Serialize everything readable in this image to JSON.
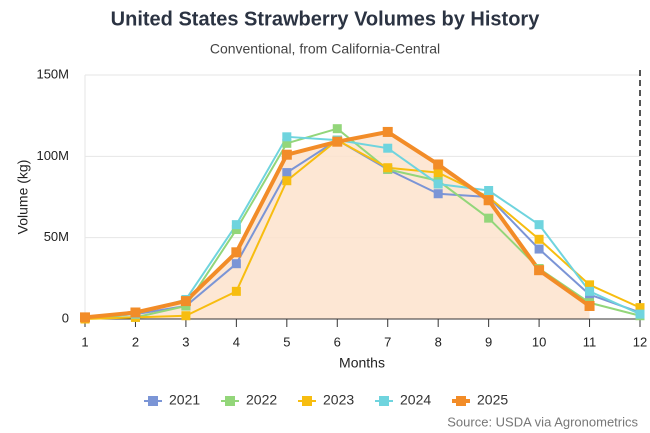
{
  "chart_data": {
    "type": "line",
    "title": "United States Strawberry Volumes by History",
    "subtitle": "Conventional, from California-Central",
    "x_label": "Months",
    "y_label": "Volume (kg)",
    "source": "Source: USDA via Agronometrics",
    "x": [
      1,
      2,
      3,
      4,
      5,
      6,
      7,
      8,
      9,
      10,
      11,
      12
    ],
    "xlim": [
      1,
      12
    ],
    "xticks": [
      1,
      2,
      3,
      4,
      5,
      6,
      7,
      8,
      9,
      10,
      11,
      12
    ],
    "ylim": [
      0,
      150000000
    ],
    "yticks": [
      0,
      {
        "value": 50000000,
        "label": "50M"
      },
      {
        "value": 100000000,
        "label": "100M"
      },
      {
        "value": 150000000,
        "label": "150M"
      }
    ],
    "grid": true,
    "legend": "bottom",
    "reference_line_x": 12,
    "series": [
      {
        "name": "2021",
        "color": "#7b95d6",
        "values": [
          1000000,
          3000000,
          8000000,
          34000000,
          90000000,
          110000000,
          92000000,
          77000000,
          75000000,
          43000000,
          15000000,
          4000000
        ]
      },
      {
        "name": "2022",
        "color": "#93d67a",
        "values": [
          1000000,
          1000000,
          8000000,
          55000000,
          108000000,
          117000000,
          92000000,
          85000000,
          62000000,
          31000000,
          10000000,
          2000000
        ]
      },
      {
        "name": "2023",
        "color": "#f7bd10",
        "values": [
          0,
          1000000,
          2000000,
          17000000,
          85000000,
          110000000,
          93000000,
          90000000,
          75000000,
          49000000,
          21000000,
          7000000
        ]
      },
      {
        "name": "2024",
        "color": "#6fd4de",
        "values": [
          1000000,
          3000000,
          12000000,
          58000000,
          112000000,
          110000000,
          105000000,
          83000000,
          79000000,
          58000000,
          17000000,
          3000000
        ]
      },
      {
        "name": "2025",
        "color": "#f28c28",
        "area": "#fde3cc",
        "values": [
          1000000,
          4000000,
          11000000,
          41000000,
          101000000,
          109000000,
          115000000,
          95000000,
          73000000,
          30000000,
          8000000,
          null
        ]
      }
    ]
  }
}
